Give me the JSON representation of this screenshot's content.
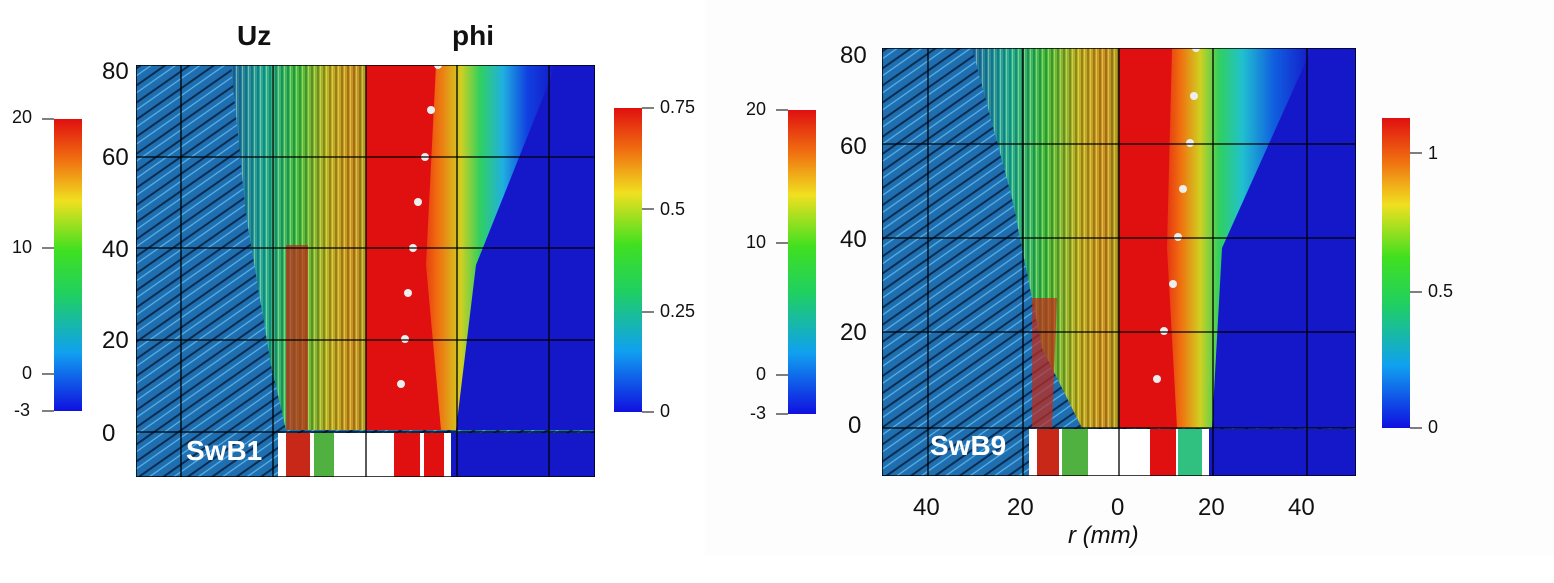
{
  "left_panel": {
    "title_left": "Uz",
    "title_right": "phi",
    "case_label": "SwB1",
    "y_ticks": [
      "80",
      "60",
      "40",
      "20",
      "0"
    ],
    "uz_colorbar": {
      "max_label": "20",
      "ticks": [
        "20",
        "10",
        "0",
        "-3"
      ]
    },
    "phi_colorbar": {
      "ticks": [
        "0.75",
        "0.5",
        "0.25",
        "0"
      ]
    }
  },
  "right_panel": {
    "case_label": "SwB9",
    "y_ticks": [
      "80",
      "60",
      "40",
      "20",
      "0"
    ],
    "x_ticks": [
      "40",
      "20",
      "0",
      "20",
      "40"
    ],
    "x_label": "r (mm)",
    "uz_colorbar": {
      "ticks": [
        "20",
        "10",
        "0",
        "-3"
      ]
    },
    "phi_colorbar": {
      "ticks": [
        "1",
        "0.5",
        "0"
      ]
    }
  },
  "colors": {
    "background_flow": "#1f6fb0",
    "flame_red": "#e01010",
    "outer_blue": "#1418c8"
  }
}
